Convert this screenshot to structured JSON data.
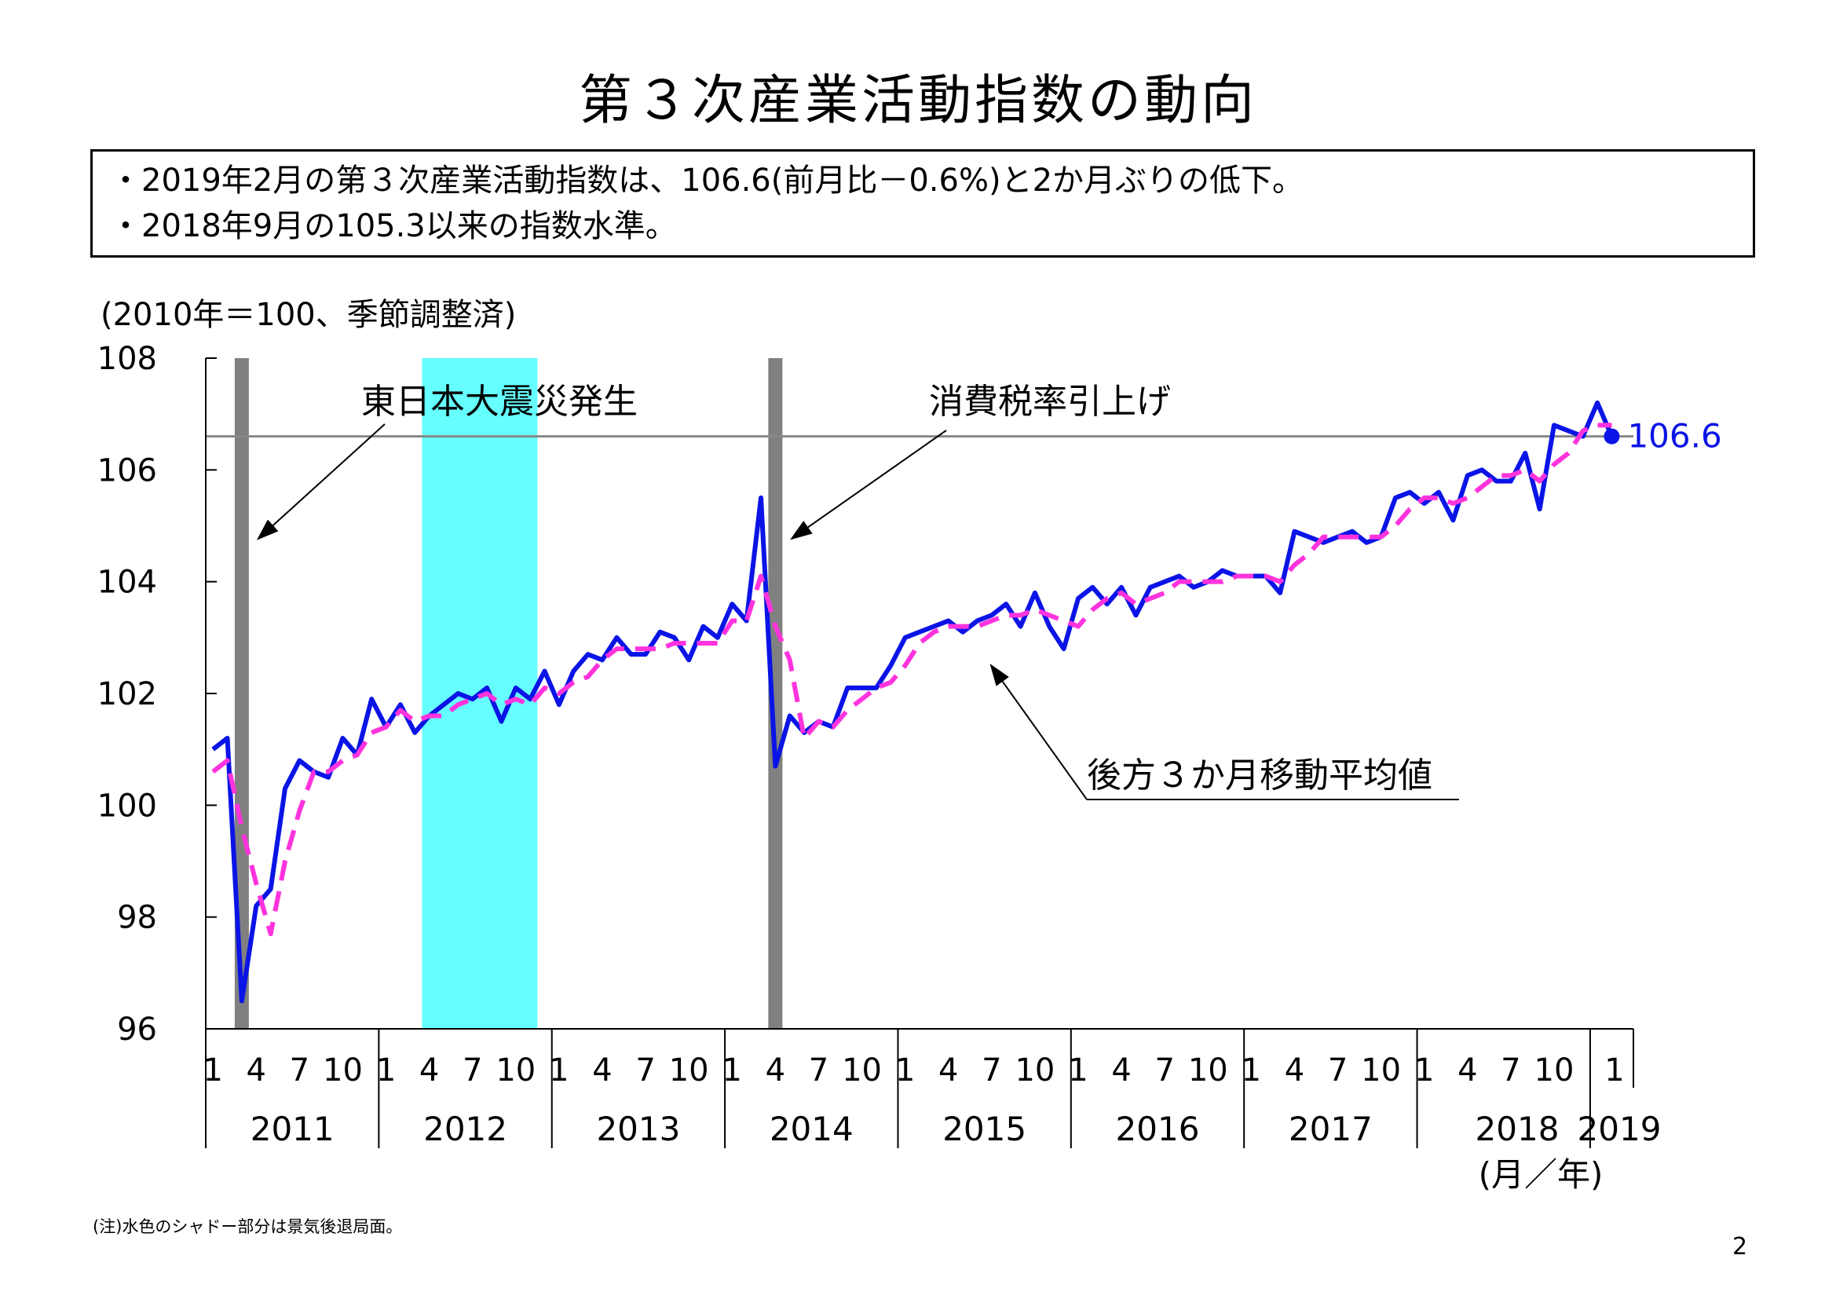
{
  "title": "第３次産業活動指数の動向",
  "summary": [
    "・2019年2月の第３次産業活動指数は、106.6(前月比－0.6%)と2か月ぶりの低下。",
    "・2018年9月の105.3以来の指数水準。"
  ],
  "unit_note": "(2010年＝100、季節調整済)",
  "footnote": "(注)水色のシャドー部分は景気後退局面。",
  "page_number": "2",
  "chart_data": {
    "type": "line",
    "ylim": [
      96,
      108
    ],
    "y_ticks": [
      96,
      98,
      100,
      102,
      104,
      106,
      108
    ],
    "x_start": "2011-01",
    "month_tick_labels": [
      "1",
      "4",
      "7",
      "10"
    ],
    "years": [
      "2011",
      "2012",
      "2013",
      "2014",
      "2015",
      "2016",
      "2017",
      "2018",
      "2019"
    ],
    "x_unit_label": "(月／年)",
    "reference_line": 106.6,
    "latest_label": "106.6",
    "recession_shading": {
      "start": "2012-04",
      "end": "2012-11",
      "color": "#66ffff"
    },
    "event_bars": [
      {
        "month": "2011-03",
        "label": "東日本大震災発生"
      },
      {
        "month": "2014-04",
        "label": "消費税率引上げ"
      }
    ],
    "series": [
      {
        "name": "",
        "color": "#0a14e6",
        "style": "solid",
        "values": [
          101.0,
          101.2,
          96.5,
          98.2,
          98.5,
          100.3,
          100.8,
          100.6,
          100.5,
          101.2,
          100.9,
          101.9,
          101.4,
          101.8,
          101.3,
          101.6,
          101.8,
          102.0,
          101.9,
          102.1,
          101.5,
          102.1,
          101.9,
          102.4,
          101.8,
          102.4,
          102.7,
          102.6,
          103.0,
          102.7,
          102.7,
          103.1,
          103.0,
          102.6,
          103.2,
          103.0,
          103.6,
          103.3,
          105.5,
          100.7,
          101.6,
          101.3,
          101.5,
          101.4,
          102.1,
          102.1,
          102.1,
          102.5,
          103.0,
          103.1,
          103.2,
          103.3,
          103.1,
          103.3,
          103.4,
          103.6,
          103.2,
          103.8,
          103.2,
          102.8,
          103.7,
          103.9,
          103.6,
          103.9,
          103.4,
          103.9,
          104.0,
          104.1,
          103.9,
          104.0,
          104.2,
          104.1,
          104.1,
          104.1,
          103.8,
          104.9,
          104.8,
          104.7,
          104.8,
          104.9,
          104.7,
          104.8,
          105.5,
          105.6,
          105.4,
          105.6,
          105.1,
          105.9,
          106.0,
          105.8,
          105.8,
          106.3,
          105.3,
          106.8,
          106.7,
          106.6,
          107.2,
          106.6
        ]
      },
      {
        "name": "後方３か月移動平均値",
        "color": "#ff33dd",
        "style": "dashed",
        "values": [
          100.6,
          100.8,
          99.6,
          98.6,
          97.7,
          99.0,
          99.9,
          100.6,
          100.6,
          100.8,
          100.9,
          101.3,
          101.4,
          101.7,
          101.5,
          101.6,
          101.6,
          101.8,
          101.9,
          102.0,
          101.8,
          101.9,
          101.8,
          102.1,
          102.0,
          102.2,
          102.3,
          102.6,
          102.8,
          102.8,
          102.8,
          102.8,
          102.9,
          102.9,
          102.9,
          102.9,
          103.3,
          103.3,
          104.1,
          103.2,
          102.6,
          101.2,
          101.5,
          101.4,
          101.7,
          101.9,
          102.1,
          102.2,
          102.5,
          102.9,
          103.1,
          103.2,
          103.2,
          103.2,
          103.3,
          103.4,
          103.4,
          103.5,
          103.4,
          103.3,
          103.2,
          103.5,
          103.7,
          103.8,
          103.6,
          103.7,
          103.8,
          104.0,
          104.0,
          104.0,
          104.0,
          104.1,
          104.1,
          104.1,
          104.0,
          104.3,
          104.5,
          104.8,
          104.8,
          104.8,
          104.8,
          104.8,
          105.0,
          105.3,
          105.5,
          105.5,
          105.4,
          105.5,
          105.7,
          105.9,
          105.9,
          106.0,
          105.8,
          106.1,
          106.3,
          106.7,
          106.8,
          106.8
        ]
      }
    ],
    "annotations": [
      {
        "text": "東日本大震災発生",
        "value": 106.8,
        "target_month": "2011-03",
        "target_value": 105.4
      },
      {
        "text": "消費税率引上げ",
        "value": 106.8,
        "target_month": "2014-04",
        "target_value": 105.4
      },
      {
        "text": "後方３か月移動平均値",
        "value": 100.5,
        "target_month": "2015-07",
        "target_value": 102.6
      }
    ]
  }
}
